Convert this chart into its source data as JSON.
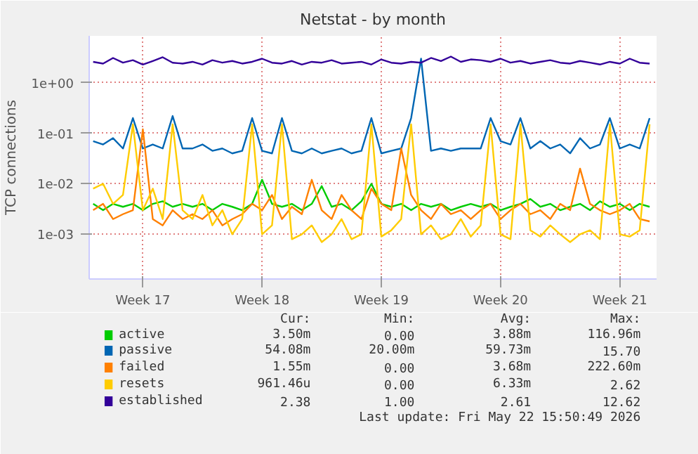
{
  "chart_data": {
    "type": "line",
    "title": "Netstat - by month",
    "ylabel": "TCP connections",
    "categories": [
      null,
      null,
      null,
      null,
      null,
      "Week 17",
      null,
      null,
      null,
      null,
      null,
      null,
      null,
      null,
      null,
      null,
      null,
      "Week 18",
      null,
      null,
      null,
      null,
      null,
      null,
      null,
      null,
      null,
      null,
      null,
      "Week 19",
      null,
      null,
      null,
      null,
      null,
      null,
      null,
      null,
      null,
      null,
      null,
      "Week 20",
      null,
      null,
      null,
      null,
      null,
      null,
      null,
      null,
      null,
      null,
      null,
      "Week 21",
      null,
      null,
      null
    ],
    "series": [
      {
        "name": "active",
        "color": "#00cc00",
        "values": [
          0.004,
          0.003,
          0.004,
          0.0035,
          0.004,
          0.003,
          0.004,
          0.0045,
          0.0035,
          0.004,
          0.0035,
          0.004,
          0.003,
          0.004,
          0.0035,
          0.003,
          0.004,
          0.012,
          0.004,
          0.0035,
          0.004,
          0.003,
          0.004,
          0.009,
          0.0035,
          0.004,
          0.003,
          0.0045,
          0.01,
          0.004,
          0.0035,
          0.004,
          0.003,
          0.004,
          0.0035,
          0.004,
          0.003,
          0.0035,
          0.004,
          0.0035,
          0.004,
          0.003,
          0.0035,
          0.004,
          0.005,
          0.0035,
          0.004,
          0.003,
          0.0035,
          0.004,
          0.003,
          0.0045,
          0.0035,
          0.004,
          0.003,
          0.004,
          0.0035
        ]
      },
      {
        "name": "passive",
        "color": "#0066b3",
        "values": [
          0.07,
          0.06,
          0.08,
          0.05,
          0.2,
          0.05,
          0.06,
          0.05,
          0.22,
          0.05,
          0.05,
          0.06,
          0.045,
          0.05,
          0.04,
          0.045,
          0.2,
          0.045,
          0.04,
          0.2,
          0.045,
          0.04,
          0.05,
          0.04,
          0.045,
          0.05,
          0.04,
          0.045,
          0.2,
          0.04,
          0.045,
          0.05,
          0.2,
          3.0,
          0.045,
          0.05,
          0.045,
          0.05,
          0.05,
          0.05,
          0.2,
          0.07,
          0.06,
          0.2,
          0.05,
          0.07,
          0.05,
          0.06,
          0.04,
          0.08,
          0.05,
          0.06,
          0.2,
          0.05,
          0.06,
          0.05,
          0.2
        ]
      },
      {
        "name": "failed",
        "color": "#ff8000",
        "values": [
          0.003,
          0.004,
          0.002,
          0.0025,
          0.003,
          0.12,
          0.002,
          0.0015,
          0.003,
          0.002,
          0.0025,
          0.002,
          0.003,
          0.0015,
          0.002,
          0.0025,
          0.004,
          0.003,
          0.006,
          0.002,
          0.0035,
          0.0025,
          0.012,
          0.003,
          0.002,
          0.006,
          0.003,
          0.002,
          0.008,
          0.004,
          0.003,
          0.05,
          0.006,
          0.003,
          0.002,
          0.004,
          0.0025,
          0.003,
          0.002,
          0.003,
          0.004,
          0.002,
          0.003,
          0.004,
          0.0025,
          0.003,
          0.002,
          0.004,
          0.003,
          0.02,
          0.004,
          0.003,
          0.0025,
          0.003,
          0.004,
          0.002,
          0.0018
        ]
      },
      {
        "name": "resets",
        "color": "#ffcc00",
        "values": [
          0.008,
          0.01,
          0.004,
          0.006,
          0.15,
          0.003,
          0.008,
          0.002,
          0.15,
          0.003,
          0.002,
          0.006,
          0.0015,
          0.003,
          0.001,
          0.002,
          0.15,
          0.001,
          0.0015,
          0.15,
          0.0008,
          0.001,
          0.0015,
          0.0007,
          0.001,
          0.002,
          0.0008,
          0.001,
          0.15,
          0.0009,
          0.0012,
          0.002,
          0.15,
          0.001,
          0.0015,
          0.0008,
          0.001,
          0.002,
          0.0009,
          0.0015,
          0.15,
          0.001,
          0.0008,
          0.15,
          0.0012,
          0.0009,
          0.0015,
          0.001,
          0.0007,
          0.001,
          0.0012,
          0.0008,
          0.15,
          0.001,
          0.0009,
          0.0012,
          0.15
        ]
      },
      {
        "name": "established",
        "color": "#330099",
        "values": [
          2.6,
          2.4,
          3.1,
          2.5,
          2.8,
          2.3,
          2.7,
          3.2,
          2.5,
          2.4,
          2.6,
          2.3,
          2.8,
          2.5,
          2.7,
          2.4,
          2.6,
          3.0,
          2.5,
          2.4,
          2.7,
          2.3,
          2.6,
          2.5,
          2.8,
          2.4,
          2.5,
          2.6,
          2.3,
          2.9,
          2.5,
          2.4,
          2.6,
          2.5,
          3.1,
          2.7,
          3.3,
          2.6,
          2.9,
          2.8,
          2.6,
          3.0,
          2.5,
          2.7,
          2.4,
          2.6,
          2.8,
          2.5,
          2.4,
          2.7,
          2.5,
          2.3,
          2.6,
          2.4,
          3.0,
          2.5,
          2.4
        ]
      }
    ],
    "ylim": [
      0.00013,
      8.5
    ],
    "yticks": [
      {
        "value": 0.001,
        "label": "1e-03"
      },
      {
        "value": 0.01,
        "label": "1e-02"
      },
      {
        "value": 0.1,
        "label": "1e-01"
      },
      {
        "value": 1,
        "label": "1e+00"
      }
    ],
    "log": true,
    "grid": true,
    "legend": "bottom",
    "line_style": "solid",
    "annotations": [
      "Cur:",
      "Min:",
      "Avg:",
      "Max:",
      "3.50m",
      "0.00",
      "3.88m",
      "116.96m",
      "54.08m",
      "20.00m",
      "59.73m",
      "15.70",
      "1.55m",
      "0.00",
      "3.68m",
      "222.60m",
      "961.46u",
      "0.00",
      "6.33m",
      "2.62",
      "2.38",
      "1.00",
      "2.61",
      "12.62",
      "Last update: Fri May 22 15:50:49 2026"
    ]
  }
}
